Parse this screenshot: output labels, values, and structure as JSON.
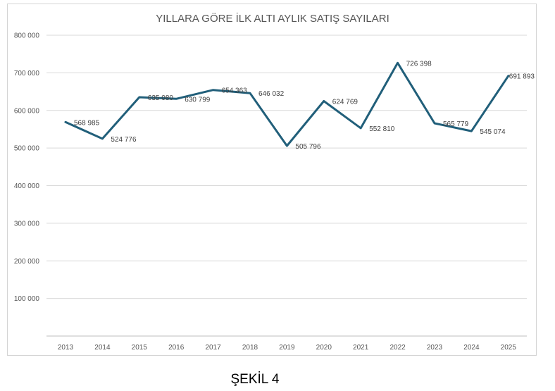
{
  "chart_data": {
    "type": "line",
    "title": "YILLARA GÖRE İLK ALTI AYLIK SATIŞ SAYILARI",
    "categories": [
      "2013",
      "2014",
      "2015",
      "2016",
      "2017",
      "2018",
      "2019",
      "2020",
      "2021",
      "2022",
      "2023",
      "2024",
      "2025"
    ],
    "values": [
      568985,
      524776,
      635080,
      630799,
      654363,
      646032,
      505796,
      624769,
      552810,
      726398,
      565779,
      545074,
      691893
    ],
    "data_labels": [
      "568 985",
      "524 776",
      "635 080",
      "630 799",
      "654 363",
      "646 032",
      "505 796",
      "624 769",
      "552 810",
      "726 398",
      "565 779",
      "545 074",
      "691 893"
    ],
    "ylim": [
      0,
      800000
    ],
    "y_ticks": [
      100000,
      200000,
      300000,
      400000,
      500000,
      600000,
      700000,
      800000
    ],
    "y_tick_labels": [
      "100 000",
      "200 000",
      "300 000",
      "400 000",
      "500 000",
      "600 000",
      "700 000",
      "800 000"
    ],
    "grid": true,
    "line_color": "#215f7a",
    "grid_color": "#d9d9d9"
  },
  "caption": "ŞEKİL 4"
}
